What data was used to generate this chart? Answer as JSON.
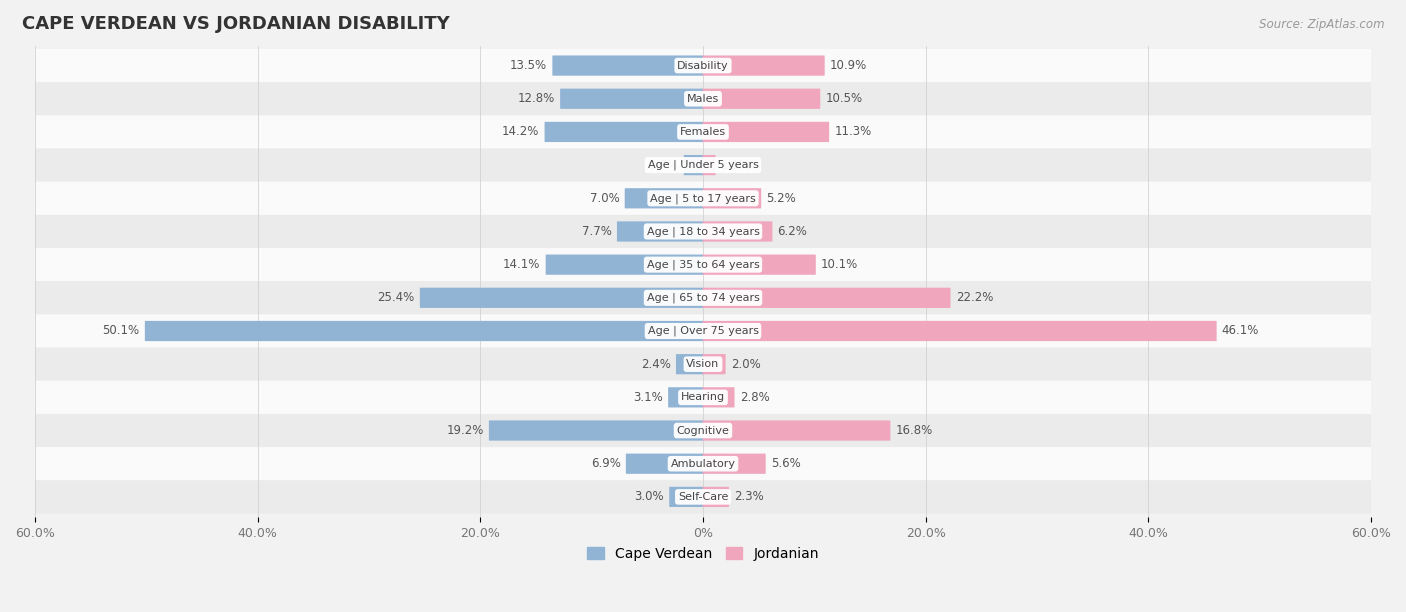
{
  "title": "CAPE VERDEAN VS JORDANIAN DISABILITY",
  "source": "Source: ZipAtlas.com",
  "categories": [
    "Disability",
    "Males",
    "Females",
    "Age | Under 5 years",
    "Age | 5 to 17 years",
    "Age | 18 to 34 years",
    "Age | 35 to 64 years",
    "Age | 65 to 74 years",
    "Age | Over 75 years",
    "Vision",
    "Hearing",
    "Cognitive",
    "Ambulatory",
    "Self-Care"
  ],
  "cape_verdean": [
    13.5,
    12.8,
    14.2,
    1.7,
    7.0,
    7.7,
    14.1,
    25.4,
    50.1,
    2.4,
    3.1,
    19.2,
    6.9,
    3.0
  ],
  "jordanian": [
    10.9,
    10.5,
    11.3,
    1.1,
    5.2,
    6.2,
    10.1,
    22.2,
    46.1,
    2.0,
    2.8,
    16.8,
    5.6,
    2.3
  ],
  "cv_color": "#91b4d5",
  "jo_color": "#f0a6bc",
  "axis_max": 60.0,
  "background_color": "#f2f2f2",
  "row_bg_even": "#fafafa",
  "row_bg_odd": "#ebebeb",
  "bar_height": 0.55,
  "label_fontsize": 8.5,
  "title_fontsize": 13,
  "legend_cv_label": "Cape Verdean",
  "legend_jo_label": "Jordanian",
  "xtick_labels": [
    "60.0%",
    "40.0%",
    "20.0%",
    "0%",
    "20.0%",
    "40.0%",
    "60.0%"
  ],
  "xtick_vals": [
    -60,
    -40,
    -20,
    0,
    20,
    40,
    60
  ]
}
